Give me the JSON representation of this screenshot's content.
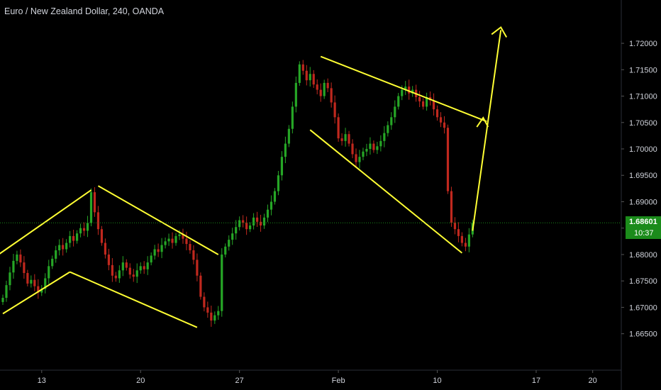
{
  "chart_data": {
    "type": "candlestick",
    "title": "Euro / New Zealand Dollar, 240, OANDA",
    "x_tick_labels": [
      "13",
      "20",
      "27",
      "Feb",
      "10",
      "17",
      "20"
    ],
    "y_tick_labels": [
      "1.72000",
      "1.71500",
      "1.71000",
      "1.70500",
      "1.70000",
      "1.69500",
      "1.69000",
      "1.68500",
      "1.68000",
      "1.67500",
      "1.67000",
      "1.66500"
    ],
    "ylim": [
      1.662,
      1.7235
    ],
    "last_price": 1.68601,
    "last_price_label": "1.68601",
    "countdown_label": "10:37",
    "grid": false,
    "colors": {
      "up": "#26a626",
      "down": "#c0281e",
      "drawing": "#ffff33",
      "axis_text": "#d1d4dc",
      "badge": "#1b8b1b",
      "price_line": "#1b8b1b"
    },
    "closes": [
      1.6718,
      1.6742,
      1.6766,
      1.6788,
      1.68,
      1.6785,
      1.6765,
      1.6745,
      1.6752,
      1.674,
      1.6728,
      1.6735,
      1.6755,
      1.6778,
      1.6792,
      1.6808,
      1.6818,
      1.681,
      1.6822,
      1.6835,
      1.6826,
      1.684,
      1.685,
      1.6845,
      1.686,
      1.6918,
      1.688,
      1.6848,
      1.6822,
      1.68,
      1.678,
      1.676,
      1.6755,
      1.677,
      1.6785,
      1.6775,
      1.6762,
      1.6758,
      1.677,
      1.6778,
      1.6772,
      1.6785,
      1.6798,
      1.681,
      1.6805,
      1.6818,
      1.6825,
      1.683,
      1.6822,
      1.6835,
      1.6838,
      1.683,
      1.682,
      1.6808,
      1.679,
      1.676,
      1.672,
      1.67,
      1.669,
      1.6675,
      1.6685,
      1.6693,
      1.68,
      1.6815,
      1.6828,
      1.684,
      1.6852,
      1.6865,
      1.686,
      1.6848,
      1.6855,
      1.687,
      1.6862,
      1.6855,
      1.687,
      1.6885,
      1.69,
      1.692,
      1.695,
      1.6985,
      1.701,
      1.7038,
      1.708,
      1.7125,
      1.716,
      1.7148,
      1.713,
      1.7142,
      1.7122,
      1.7112,
      1.71,
      1.7125,
      1.7115,
      1.7088,
      1.706,
      1.702,
      1.7015,
      1.7028,
      1.701,
      1.699,
      1.6975,
      1.6985,
      1.6995,
      1.7,
      1.701,
      1.6998,
      1.7005,
      1.7015,
      1.703,
      1.7045,
      1.706,
      1.708,
      1.71,
      1.7112,
      1.7118,
      1.7105,
      1.7112,
      1.7098,
      1.709,
      1.708,
      1.7098,
      1.7092,
      1.7075,
      1.706,
      1.705,
      1.704,
      1.692,
      1.686,
      1.6848,
      1.6835,
      1.6822,
      1.6815,
      1.6838,
      1.686
    ],
    "drawings": [
      {
        "x1_bar": -1,
        "y1": 1.6801,
        "x2_bar": 25,
        "y2": 1.6922
      },
      {
        "x1_bar": 0,
        "y1": 1.6688,
        "x2_bar": 19,
        "y2": 1.6767
      },
      {
        "x1_bar": 19,
        "y1": 1.6767,
        "x2_bar": 55,
        "y2": 1.6662
      },
      {
        "x1_bar": 27,
        "y1": 1.693,
        "x2_bar": 61,
        "y2": 1.68
      },
      {
        "x1_bar": 90,
        "y1": 1.7175,
        "x2_bar": 137,
        "y2": 1.7052
      },
      {
        "x1_bar": 87,
        "y1": 1.7036,
        "x2_bar": 130,
        "y2": 1.6803
      },
      {
        "x1_bar": 133,
        "y1": 1.6845,
        "x2_bar": 141,
        "y2": 1.7225
      }
    ],
    "arrow_head": {
      "x_bar": 141,
      "y": 1.7225
    },
    "arrow_cross": {
      "x_bar": 136,
      "y": 1.7059
    }
  }
}
